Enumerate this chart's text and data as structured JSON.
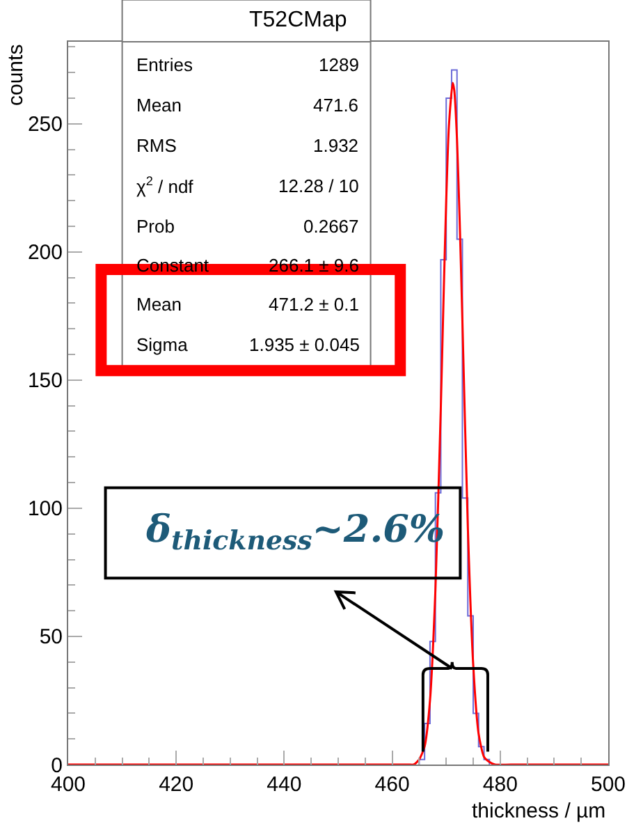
{
  "chart_data": {
    "type": "histogram",
    "xlabel": "thickness / µm",
    "ylabel": "counts",
    "xlim": [
      400,
      500
    ],
    "xticks": [
      400,
      420,
      440,
      460,
      480,
      500
    ],
    "ylim": [
      0,
      282
    ],
    "yticks": [
      0,
      50,
      100,
      150,
      200,
      250
    ],
    "series": [
      {
        "type": "histogram",
        "color": "#6a6ad8",
        "bins": [
          465,
          466,
          467,
          468,
          469,
          470,
          471,
          472,
          473,
          474,
          475,
          476,
          477,
          478
        ],
        "values": [
          2,
          16,
          48,
          106,
          197,
          260,
          271,
          205,
          104,
          58,
          20,
          7,
          2
        ]
      },
      {
        "type": "line",
        "color": "#ff0000",
        "x": [
          400,
          460,
          463,
          464,
          465,
          466,
          467,
          468,
          469,
          469.5,
          470,
          470.5,
          471.2,
          471.5,
          472,
          472.5,
          473,
          474,
          475,
          476,
          477,
          478,
          479,
          482,
          500
        ],
        "values": [
          0,
          0,
          0,
          0,
          2,
          7,
          25,
          68,
          139,
          181,
          220,
          249,
          266,
          263,
          244,
          212,
          173,
          93,
          39,
          12,
          3,
          1,
          0,
          0,
          0
        ]
      }
    ],
    "annotations": [
      "T52CMap",
      "Entries",
      "1289",
      "Mean",
      "471.6",
      "RMS",
      "1.932",
      "χ$^{2}$ / ndf",
      "12.28 / 10",
      "Prob",
      "0.2667",
      "Constant",
      "266.1 ± 9.6",
      "Mean",
      "471.2 ± 0.1",
      "Sigma",
      "1.935 ± 0.045",
      "δ$_{thickness}$~2.6%"
    ]
  }
}
